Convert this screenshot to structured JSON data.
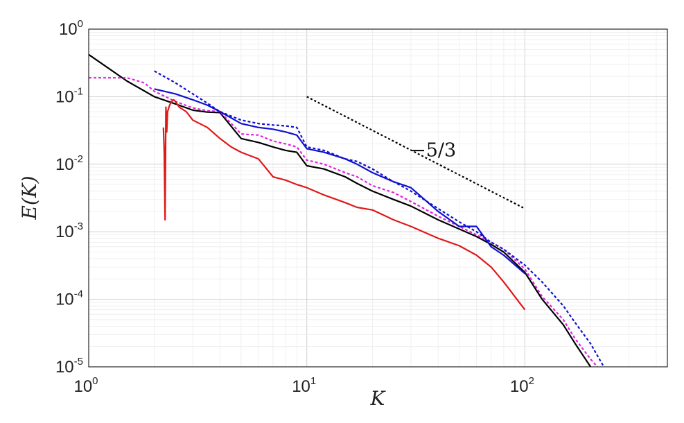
{
  "chart_data": {
    "type": "line",
    "title": "",
    "xlabel": "K",
    "ylabel": "E(K)",
    "x_scale": "log",
    "y_scale": "log",
    "xlim": [
      1,
      450
    ],
    "ylim": [
      1e-05,
      1
    ],
    "grid": true,
    "minor_grid": true,
    "legend": "none",
    "x_ticks": [
      {
        "value": 1,
        "base": "10",
        "exp": "0"
      },
      {
        "value": 10,
        "base": "10",
        "exp": "1"
      },
      {
        "value": 100,
        "base": "10",
        "exp": "2"
      }
    ],
    "y_ticks": [
      {
        "value": 1,
        "base": "10",
        "exp": "0"
      },
      {
        "value": 0.1,
        "base": "10",
        "exp": "-1"
      },
      {
        "value": 0.01,
        "base": "10",
        "exp": "-2"
      },
      {
        "value": 0.001,
        "base": "10",
        "exp": "-3"
      },
      {
        "value": 0.0001,
        "base": "10",
        "exp": "-4"
      },
      {
        "value": 1e-05,
        "base": "10",
        "exp": "-5"
      }
    ],
    "series": [
      {
        "color": "#000000",
        "style": "solid",
        "x": [
          1,
          1.5,
          2,
          2.5,
          3,
          3.5,
          4,
          5,
          6,
          7,
          8,
          9,
          10,
          12,
          15,
          17,
          20,
          25,
          30,
          40,
          50,
          60,
          70,
          80,
          100,
          120,
          150,
          170,
          200
        ],
        "y": [
          0.42,
          0.17,
          0.1,
          0.078,
          0.063,
          0.059,
          0.058,
          0.024,
          0.021,
          0.018,
          0.016,
          0.015,
          0.0095,
          0.0085,
          0.0065,
          0.0052,
          0.004,
          0.003,
          0.0024,
          0.0015,
          0.0011,
          0.00085,
          0.00065,
          0.0005,
          0.00025,
          0.0001,
          4.2e-05,
          2.2e-05,
          1e-05
        ]
      },
      {
        "color": "#e020e0",
        "style": "dotted",
        "x": [
          1,
          1.5,
          1.8,
          2,
          2.5,
          3,
          3.5,
          4,
          5,
          6,
          7,
          8,
          9,
          10,
          12,
          15,
          17,
          20,
          25,
          30,
          40,
          50,
          60,
          70,
          80,
          100,
          120,
          150,
          170,
          200,
          215
        ],
        "y": [
          0.19,
          0.19,
          0.16,
          0.12,
          0.085,
          0.068,
          0.062,
          0.06,
          0.028,
          0.027,
          0.022,
          0.02,
          0.018,
          0.0115,
          0.01,
          0.0075,
          0.0065,
          0.0048,
          0.0038,
          0.0028,
          0.0017,
          0.0012,
          0.0009,
          0.0007,
          0.00055,
          0.00028,
          0.00011,
          5e-05,
          2.6e-05,
          1.3e-05,
          1e-05
        ]
      },
      {
        "color": "#1010d0",
        "style": "solid",
        "x": [
          2,
          2.5,
          3,
          3.5,
          4,
          5,
          6,
          7,
          8,
          9,
          10,
          12,
          15,
          17,
          20,
          25,
          30,
          40,
          50,
          60,
          70,
          80,
          100
        ],
        "y": [
          0.13,
          0.11,
          0.09,
          0.075,
          0.06,
          0.04,
          0.035,
          0.033,
          0.03,
          0.027,
          0.017,
          0.015,
          0.012,
          0.01,
          0.0075,
          0.0055,
          0.0045,
          0.002,
          0.0012,
          0.0012,
          0.0006,
          0.00045,
          0.00024
        ]
      },
      {
        "color": "#1010d0",
        "style": "dotted",
        "x": [
          2,
          2.5,
          3,
          3.5,
          4,
          5,
          6,
          7,
          8,
          9,
          10,
          12,
          15,
          17,
          20,
          25,
          30,
          40,
          50,
          60,
          70,
          80,
          100,
          120,
          150,
          170,
          200,
          230
        ],
        "y": [
          0.24,
          0.16,
          0.11,
          0.08,
          0.06,
          0.045,
          0.04,
          0.038,
          0.037,
          0.035,
          0.018,
          0.016,
          0.012,
          0.011,
          0.0085,
          0.0055,
          0.004,
          0.0022,
          0.0014,
          0.001,
          0.0007,
          0.00055,
          0.00032,
          0.00018,
          8e-05,
          4.5e-05,
          2.2e-05,
          1e-05
        ]
      },
      {
        "color": "#e01818",
        "style": "solid",
        "x": [
          2.2,
          2.22,
          2.24,
          2.26,
          2.28,
          2.3,
          2.35,
          2.4,
          2.45,
          2.5,
          2.6,
          2.8,
          3,
          3.5,
          4,
          4.5,
          5,
          6,
          7,
          8,
          9,
          10,
          12,
          15,
          17,
          20,
          25,
          30,
          40,
          50,
          60,
          70,
          80,
          100
        ],
        "y": [
          0.035,
          0.015,
          0.0015,
          0.07,
          0.03,
          0.06,
          0.075,
          0.085,
          0.09,
          0.085,
          0.07,
          0.06,
          0.045,
          0.035,
          0.024,
          0.018,
          0.015,
          0.012,
          0.0065,
          0.0058,
          0.005,
          0.0045,
          0.0035,
          0.0027,
          0.0023,
          0.0021,
          0.0015,
          0.0012,
          0.0008,
          0.00062,
          0.00045,
          0.0003,
          0.00018,
          7e-05
        ]
      }
    ],
    "reference_line": {
      "color": "#000000",
      "style": "dotted",
      "slope": -1.6667,
      "x": [
        10,
        100
      ],
      "y": [
        0.1,
        0.0022
      ],
      "label": "−5/3",
      "label_x": 38,
      "label_y": 0.013
    }
  }
}
